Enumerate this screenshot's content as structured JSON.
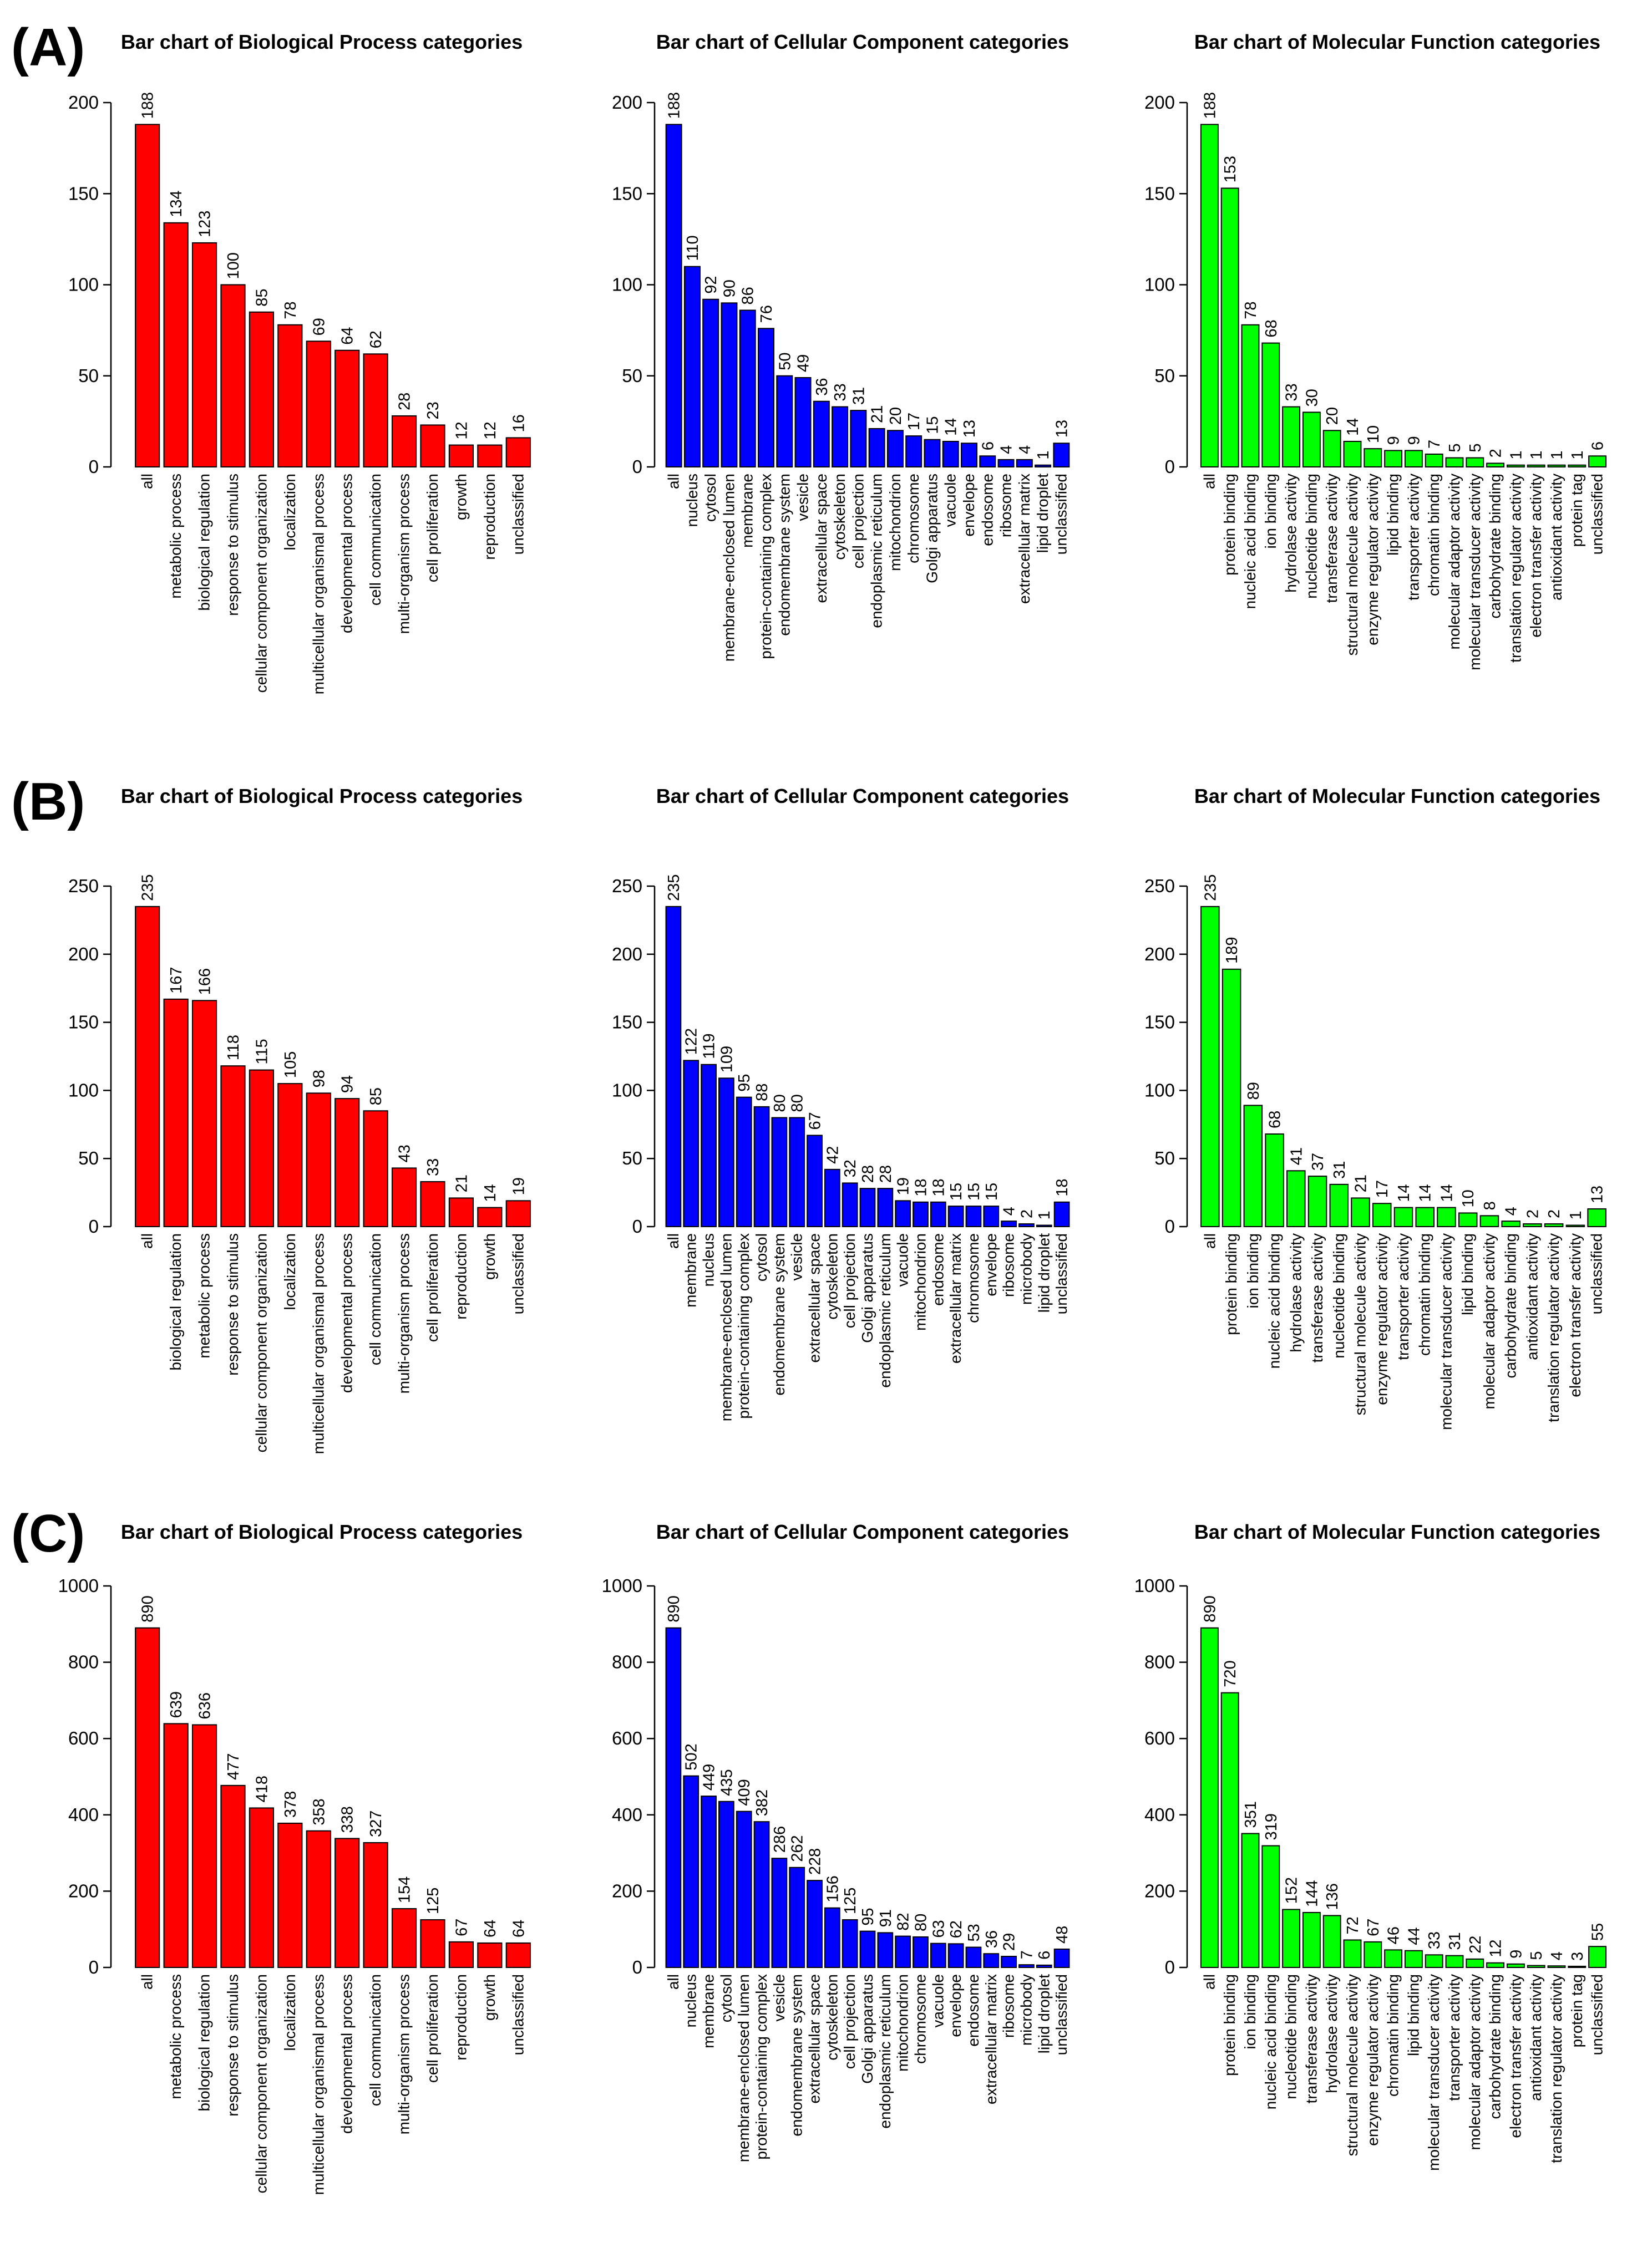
{
  "panels": [
    {
      "label": "(A)"
    },
    {
      "label": "(B)"
    },
    {
      "label": "(C)"
    }
  ],
  "chart_data": [
    {
      "type": "bar",
      "panel": "(A)",
      "color": "#ff0000",
      "title": "Bar chart of Biological Process categories",
      "ylim": [
        0,
        200
      ],
      "yticks": [
        0,
        50,
        100,
        150,
        200
      ],
      "categories": [
        "all",
        "metabolic process",
        "biological regulation",
        "response to stimulus",
        "cellular component organization",
        "localization",
        "multicellular organismal process",
        "developmental process",
        "cell communication",
        "multi-organism process",
        "cell proliferation",
        "growth",
        "reproduction",
        "unclassified"
      ],
      "values": [
        188,
        134,
        123,
        100,
        85,
        78,
        69,
        64,
        62,
        28,
        23,
        12,
        12,
        16
      ]
    },
    {
      "type": "bar",
      "panel": "(A)",
      "color": "#0000ff",
      "title": "Bar chart of Cellular Component categories",
      "ylim": [
        0,
        200
      ],
      "yticks": [
        0,
        50,
        100,
        150,
        200
      ],
      "categories": [
        "all",
        "nucleus",
        "cytosol",
        "membrane-enclosed lumen",
        "membrane",
        "protein-containing complex",
        "endomembrane system",
        "vesicle",
        "extracellular space",
        "cytoskeleton",
        "cell projection",
        "endoplasmic reticulum",
        "mitochondrion",
        "chromosome",
        "Golgi apparatus",
        "vacuole",
        "envelope",
        "endosome",
        "ribosome",
        "extracellular matrix",
        "lipid droplet",
        "unclassified"
      ],
      "values": [
        188,
        110,
        92,
        90,
        86,
        76,
        50,
        49,
        36,
        33,
        31,
        21,
        20,
        17,
        15,
        14,
        13,
        6,
        4,
        4,
        1,
        13
      ]
    },
    {
      "type": "bar",
      "panel": "(A)",
      "color": "#00ff00",
      "title": "Bar chart of Molecular Function categories",
      "ylim": [
        0,
        200
      ],
      "yticks": [
        0,
        50,
        100,
        150,
        200
      ],
      "categories": [
        "all",
        "protein binding",
        "nucleic acid binding",
        "ion binding",
        "hydrolase activity",
        "nucleotide binding",
        "transferase activity",
        "structural molecule activity",
        "enzyme regulator activity",
        "lipid binding",
        "transporter activity",
        "chromatin binding",
        "molecular adaptor activity",
        "molecular transducer activity",
        "carbohydrate binding",
        "translation regulator activity",
        "electron transfer activity",
        "antioxidant activity",
        "protein tag",
        "unclassified"
      ],
      "values": [
        188,
        153,
        78,
        68,
        33,
        30,
        20,
        14,
        10,
        9,
        9,
        7,
        5,
        5,
        2,
        1,
        1,
        1,
        1,
        6
      ]
    },
    {
      "type": "bar",
      "panel": "(B)",
      "color": "#ff0000",
      "title": "Bar chart of Biological Process categories",
      "ylim": [
        0,
        250
      ],
      "yticks": [
        0,
        50,
        100,
        150,
        200,
        250
      ],
      "categories": [
        "all",
        "biological regulation",
        "metabolic process",
        "response to stimulus",
        "cellular component organization",
        "localization",
        "multicellular organismal process",
        "developmental process",
        "cell communication",
        "multi-organism process",
        "cell proliferation",
        "reproduction",
        "growth",
        "unclassified"
      ],
      "values": [
        235,
        167,
        166,
        118,
        115,
        105,
        98,
        94,
        85,
        43,
        33,
        21,
        14,
        19
      ]
    },
    {
      "type": "bar",
      "panel": "(B)",
      "color": "#0000ff",
      "title": "Bar chart of Cellular Component categories",
      "ylim": [
        0,
        250
      ],
      "yticks": [
        0,
        50,
        100,
        150,
        200,
        250
      ],
      "categories": [
        "all",
        "membrane",
        "nucleus",
        "membrane-enclosed lumen",
        "protein-containing complex",
        "cytosol",
        "endomembrane system",
        "vesicle",
        "extracellular space",
        "cytoskeleton",
        "cell projection",
        "Golgi apparatus",
        "endoplasmic reticulum",
        "vacuole",
        "mitochondrion",
        "endosome",
        "extracellular matrix",
        "chromosome",
        "envelope",
        "ribosome",
        "microbody",
        "lipid droplet",
        "unclassified"
      ],
      "values": [
        235,
        122,
        119,
        109,
        95,
        88,
        80,
        80,
        67,
        42,
        32,
        28,
        28,
        19,
        18,
        18,
        15,
        15,
        15,
        4,
        2,
        1,
        18
      ]
    },
    {
      "type": "bar",
      "panel": "(B)",
      "color": "#00ff00",
      "title": "Bar chart of Molecular Function categories",
      "ylim": [
        0,
        250
      ],
      "yticks": [
        0,
        50,
        100,
        150,
        200,
        250
      ],
      "categories": [
        "all",
        "protein binding",
        "ion binding",
        "nucleic acid binding",
        "hydrolase activity",
        "transferase activity",
        "nucleotide binding",
        "structural molecule activity",
        "enzyme regulator activity",
        "transporter activity",
        "chromatin binding",
        "molecular transducer activity",
        "lipid binding",
        "molecular adaptor activity",
        "carbohydrate binding",
        "antioxidant activity",
        "translation regulator activity",
        "electron transfer activity",
        "unclassified"
      ],
      "values": [
        235,
        189,
        89,
        68,
        41,
        37,
        31,
        21,
        17,
        14,
        14,
        14,
        10,
        8,
        4,
        2,
        2,
        1,
        13
      ]
    },
    {
      "type": "bar",
      "panel": "(C)",
      "color": "#ff0000",
      "title": "Bar chart of Biological Process categories",
      "ylim": [
        0,
        1000
      ],
      "yticks": [
        0,
        200,
        400,
        600,
        800,
        1000
      ],
      "categories": [
        "all",
        "metabolic process",
        "biological regulation",
        "response to stimulus",
        "cellular component organization",
        "localization",
        "multicellular organismal process",
        "developmental process",
        "cell communication",
        "multi-organism process",
        "cell proliferation",
        "reproduction",
        "growth",
        "unclassified"
      ],
      "values": [
        890,
        639,
        636,
        477,
        418,
        378,
        358,
        338,
        327,
        154,
        125,
        67,
        64,
        64
      ]
    },
    {
      "type": "bar",
      "panel": "(C)",
      "color": "#0000ff",
      "title": "Bar chart of Cellular Component categories",
      "ylim": [
        0,
        1000
      ],
      "yticks": [
        0,
        200,
        400,
        600,
        800,
        1000
      ],
      "categories": [
        "all",
        "nucleus",
        "membrane",
        "cytosol",
        "membrane-enclosed lumen",
        "protein-containing complex",
        "vesicle",
        "endomembrane system",
        "extracellular space",
        "cytoskeleton",
        "cell projection",
        "Golgi apparatus",
        "endoplasmic reticulum",
        "mitochondrion",
        "chromosome",
        "vacuole",
        "envelope",
        "endosome",
        "extracellular matrix",
        "ribosome",
        "microbody",
        "lipid droplet",
        "unclassified"
      ],
      "values": [
        890,
        502,
        449,
        435,
        409,
        382,
        286,
        262,
        228,
        156,
        125,
        95,
        91,
        82,
        80,
        63,
        62,
        53,
        36,
        29,
        7,
        6,
        48
      ]
    },
    {
      "type": "bar",
      "panel": "(C)",
      "color": "#00ff00",
      "title": "Bar chart of Molecular Function categories",
      "ylim": [
        0,
        1000
      ],
      "yticks": [
        0,
        200,
        400,
        600,
        800,
        1000
      ],
      "categories": [
        "all",
        "protein binding",
        "ion binding",
        "nucleic acid binding",
        "nucleotide binding",
        "transferase activity",
        "hydrolase activity",
        "structural molecule activity",
        "enzyme regulator activity",
        "chromatin binding",
        "lipid binding",
        "molecular transducer activity",
        "transporter activity",
        "molecular adaptor activity",
        "carbohydrate binding",
        "electron transfer activity",
        "antioxidant activity",
        "translation regulator activity",
        "protein tag",
        "unclassified"
      ],
      "values": [
        890,
        720,
        351,
        319,
        152,
        144,
        136,
        72,
        67,
        46,
        44,
        33,
        31,
        22,
        12,
        9,
        5,
        4,
        3,
        55
      ]
    }
  ]
}
